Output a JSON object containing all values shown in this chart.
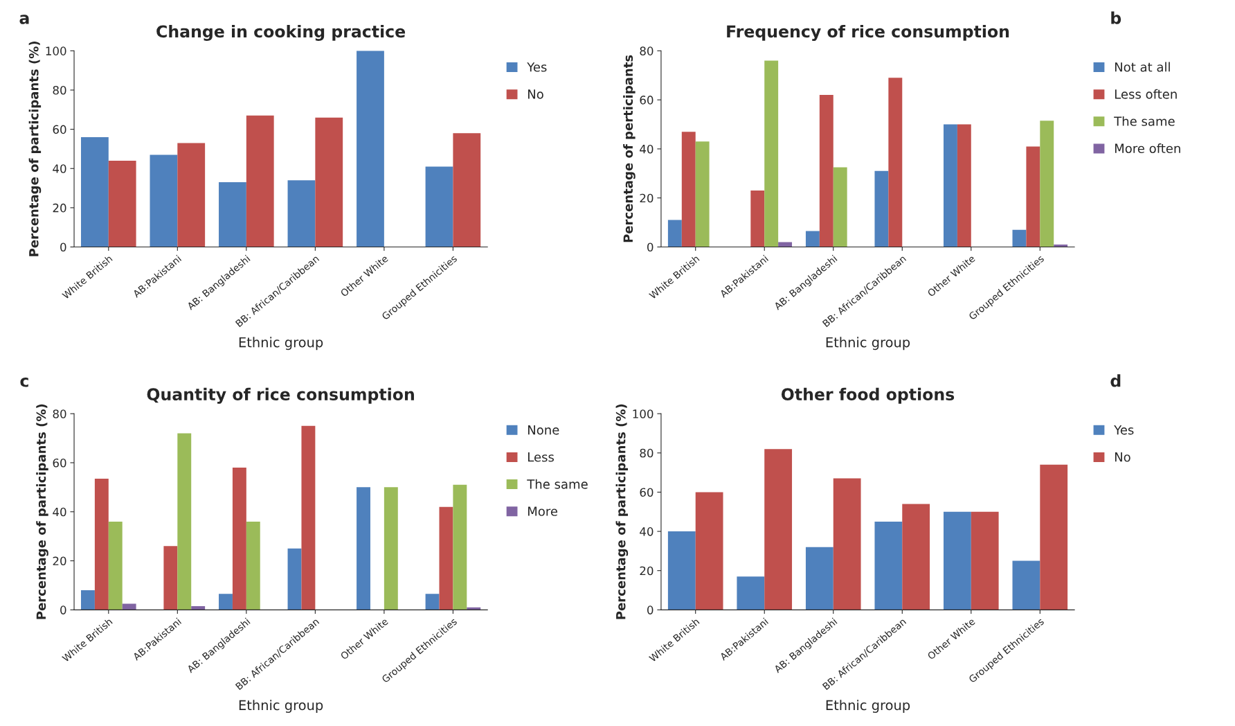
{
  "chart_data": [
    {
      "type": "bar",
      "title": "Change in cooking practice",
      "xlabel": "Ethnic group",
      "ylabel": "Percentage of participants (%)",
      "categories": [
        "White British",
        "AB:Pakistani",
        "AB: Bangladeshi",
        "BB: African/Caribbean",
        "Other White",
        "Grouped Ethnicities"
      ],
      "ylim": [
        0,
        100
      ],
      "yticks": [
        0,
        20,
        40,
        60,
        80,
        100
      ],
      "legend": "right",
      "annotations": [
        "a"
      ],
      "series": [
        {
          "name": "Yes",
          "color": "#4f81bd",
          "values": [
            56,
            47,
            33,
            34,
            100,
            41
          ]
        },
        {
          "name": "No",
          "color": "#c0504d",
          "values": [
            44,
            53,
            67,
            66,
            null,
            58
          ]
        }
      ]
    },
    {
      "type": "bar",
      "title": "Frequency of rice consumption",
      "xlabel": "Ethnic group",
      "ylabel": "Percentage of perticipants",
      "categories": [
        "White British",
        "AB:Pakistani",
        "AB: Bangladeshi",
        "BB: African/Caribbean",
        "Other White",
        "Grouped Ethnicities"
      ],
      "ylim": [
        0,
        80
      ],
      "yticks": [
        0,
        20,
        40,
        60,
        80
      ],
      "legend": "right",
      "annotations": [
        "b"
      ],
      "series": [
        {
          "name": "Not at all",
          "color": "#4f81bd",
          "values": [
            11,
            null,
            6.5,
            31,
            50,
            7
          ]
        },
        {
          "name": "Less often",
          "color": "#c0504d",
          "values": [
            47,
            23,
            62,
            69,
            50,
            41
          ]
        },
        {
          "name": "The same",
          "color": "#9bbb59",
          "values": [
            43,
            76,
            32.5,
            null,
            null,
            51.5
          ]
        },
        {
          "name": "More often",
          "color": "#8064a2",
          "values": [
            null,
            2,
            null,
            null,
            null,
            1
          ]
        }
      ]
    },
    {
      "type": "bar",
      "title": "Quantity of rice consumption",
      "xlabel": "Ethnic group",
      "ylabel": "Percentage of participants (%)",
      "categories": [
        "White British",
        "AB:Pakistani",
        "AB: Bangladeshi",
        "BB: African/Caribbean",
        "Other White",
        "Grouped Ethnicities"
      ],
      "ylim": [
        0,
        80
      ],
      "yticks": [
        0,
        20,
        40,
        60,
        80
      ],
      "legend": "right",
      "annotations": [
        "c"
      ],
      "series": [
        {
          "name": "None",
          "color": "#4f81bd",
          "values": [
            8,
            null,
            6.5,
            25,
            50,
            6.5
          ]
        },
        {
          "name": "Less",
          "color": "#c0504d",
          "values": [
            53.5,
            26,
            58,
            75,
            null,
            42
          ]
        },
        {
          "name": "The same",
          "color": "#9bbb59",
          "values": [
            36,
            72,
            36,
            null,
            50,
            51
          ]
        },
        {
          "name": "More",
          "color": "#8064a2",
          "values": [
            2.5,
            1.5,
            null,
            null,
            null,
            1
          ]
        }
      ]
    },
    {
      "type": "bar",
      "title": "Other food options",
      "xlabel": "Ethnic group",
      "ylabel": "Percentage of participants (%)",
      "categories": [
        "White British",
        "AB:Pakistani",
        "AB: Bangladeshi",
        "BB: African/Caribbean",
        "Other White",
        "Grouped Ethnicities"
      ],
      "ylim": [
        0,
        100
      ],
      "yticks": [
        0,
        20,
        40,
        60,
        80,
        100
      ],
      "legend": "right",
      "annotations": [
        "d"
      ],
      "series": [
        {
          "name": "Yes",
          "color": "#4f81bd",
          "values": [
            40,
            17,
            32,
            45,
            50,
            25
          ]
        },
        {
          "name": "No",
          "color": "#c0504d",
          "values": [
            60,
            82,
            67,
            54,
            50,
            74
          ]
        }
      ]
    }
  ]
}
